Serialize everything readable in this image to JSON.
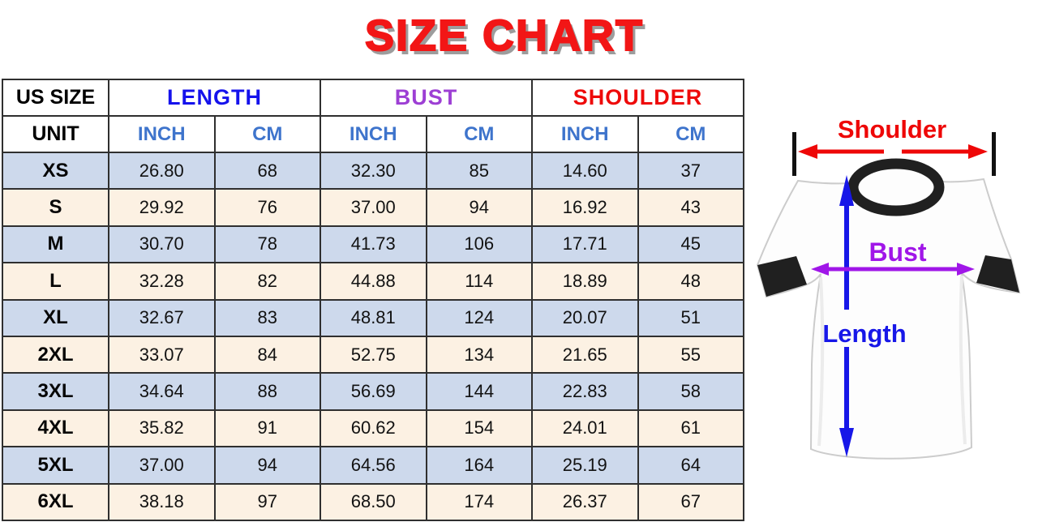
{
  "title": "SIZE CHART",
  "colors": {
    "title_red": "#f21616",
    "title_shadow": "#9d9d9d",
    "length_header": "#1512ec",
    "bust_header": "#9d3fd4",
    "shoulder_header": "#ee0a0a",
    "unit_blue": "#3e74cc",
    "row_blue": "#cdd9ec",
    "row_cream": "#fcf1e3",
    "diagram_red": "#ee0707",
    "diagram_blue": "#1717e8",
    "diagram_purple": "#a016e8"
  },
  "table": {
    "corner_label": "US SIZE",
    "unit_label": "UNIT",
    "groups": [
      {
        "label": "LENGTH",
        "color": "#1512ec"
      },
      {
        "label": "BUST",
        "color": "#9d3fd4"
      },
      {
        "label": "SHOULDER",
        "color": "#ee0a0a"
      }
    ],
    "unit_headers": [
      "INCH",
      "CM",
      "INCH",
      "CM",
      "INCH",
      "CM"
    ],
    "rows": [
      {
        "size": "XS",
        "values": [
          "26.80",
          "68",
          "32.30",
          "85",
          "14.60",
          "37"
        ]
      },
      {
        "size": "S",
        "values": [
          "29.92",
          "76",
          "37.00",
          "94",
          "16.92",
          "43"
        ]
      },
      {
        "size": "M",
        "values": [
          "30.70",
          "78",
          "41.73",
          "106",
          "17.71",
          "45"
        ]
      },
      {
        "size": "L",
        "values": [
          "32.28",
          "82",
          "44.88",
          "114",
          "18.89",
          "48"
        ]
      },
      {
        "size": "XL",
        "values": [
          "32.67",
          "83",
          "48.81",
          "124",
          "20.07",
          "51"
        ]
      },
      {
        "size": "2XL",
        "values": [
          "33.07",
          "84",
          "52.75",
          "134",
          "21.65",
          "55"
        ]
      },
      {
        "size": "3XL",
        "values": [
          "34.64",
          "88",
          "56.69",
          "144",
          "22.83",
          "58"
        ]
      },
      {
        "size": "4XL",
        "values": [
          "35.82",
          "91",
          "60.62",
          "154",
          "24.01",
          "61"
        ]
      },
      {
        "size": "5XL",
        "values": [
          "37.00",
          "94",
          "64.56",
          "164",
          "25.19",
          "64"
        ]
      },
      {
        "size": "6XL",
        "values": [
          "38.18",
          "97",
          "68.50",
          "174",
          "26.37",
          "67"
        ]
      }
    ]
  },
  "diagram": {
    "shoulder_label": "Shoulder",
    "bust_label": "Bust",
    "length_label": "Length"
  },
  "chart_data": {
    "type": "table",
    "title": "SIZE CHART",
    "columns": [
      "US SIZE",
      "LENGTH INCH",
      "LENGTH CM",
      "BUST INCH",
      "BUST CM",
      "SHOULDER INCH",
      "SHOULDER CM"
    ],
    "rows": [
      [
        "XS",
        26.8,
        68,
        32.3,
        85,
        14.6,
        37
      ],
      [
        "S",
        29.92,
        76,
        37.0,
        94,
        16.92,
        43
      ],
      [
        "M",
        30.7,
        78,
        41.73,
        106,
        17.71,
        45
      ],
      [
        "L",
        32.28,
        82,
        44.88,
        114,
        18.89,
        48
      ],
      [
        "XL",
        32.67,
        83,
        48.81,
        124,
        20.07,
        51
      ],
      [
        "2XL",
        33.07,
        84,
        52.75,
        134,
        21.65,
        55
      ],
      [
        "3XL",
        34.64,
        88,
        56.69,
        144,
        22.83,
        58
      ],
      [
        "4XL",
        35.82,
        91,
        60.62,
        154,
        24.01,
        61
      ],
      [
        "5XL",
        37.0,
        94,
        64.56,
        164,
        25.19,
        64
      ],
      [
        "6XL",
        38.18,
        97,
        68.5,
        174,
        26.37,
        67
      ]
    ],
    "annotations": [
      "Shoulder",
      "Bust",
      "Length"
    ]
  }
}
